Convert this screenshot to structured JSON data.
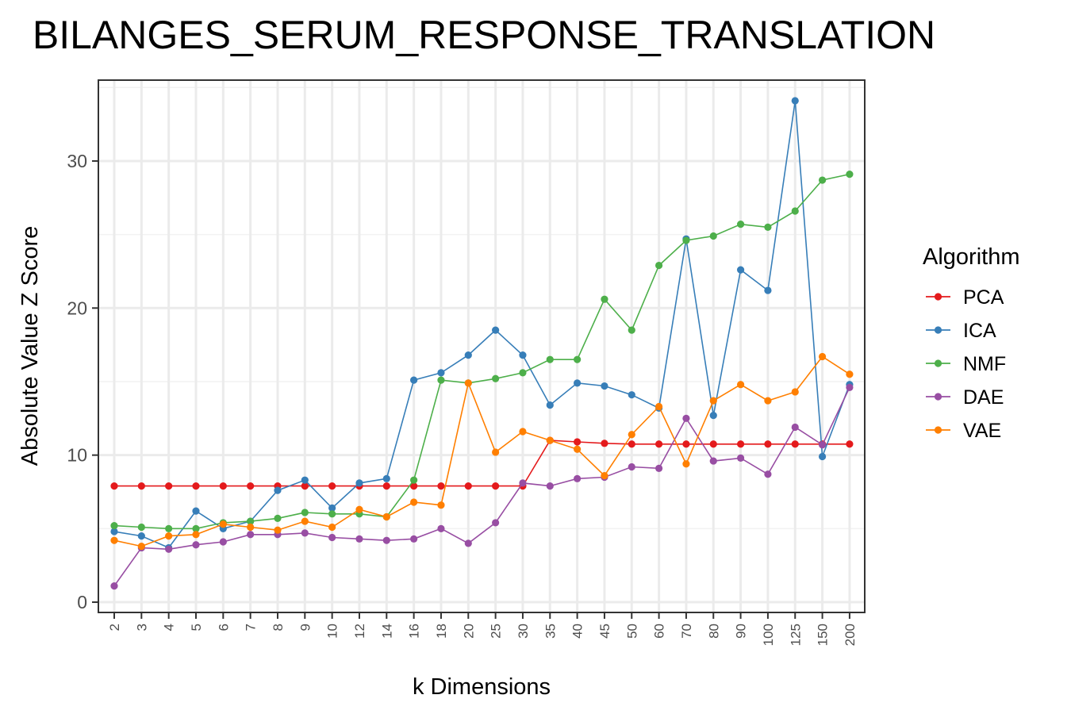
{
  "chart_data": {
    "type": "line",
    "title": "BILANGES_SERUM_RESPONSE_TRANSLATION",
    "xlabel": "k Dimensions",
    "ylabel": "Absolute Value Z Score",
    "categories": [
      "2",
      "3",
      "4",
      "5",
      "6",
      "7",
      "8",
      "9",
      "10",
      "12",
      "14",
      "16",
      "18",
      "20",
      "25",
      "30",
      "35",
      "40",
      "45",
      "50",
      "60",
      "70",
      "80",
      "90",
      "100",
      "125",
      "150",
      "200"
    ],
    "ylim": [
      -0.7,
      35.5
    ],
    "yticks": [
      0,
      10,
      20,
      30
    ],
    "grid": true,
    "legend_title": "Algorithm",
    "legend_position": "right",
    "series": [
      {
        "name": "PCA",
        "color": "#e41a1c",
        "values": [
          7.9,
          7.9,
          7.9,
          7.9,
          7.9,
          7.9,
          7.9,
          7.9,
          7.9,
          7.9,
          7.9,
          7.9,
          7.9,
          7.9,
          7.9,
          7.9,
          11.0,
          10.9,
          10.8,
          10.75,
          10.75,
          10.75,
          10.75,
          10.75,
          10.75,
          10.75,
          10.75,
          10.75
        ]
      },
      {
        "name": "ICA",
        "color": "#377eb8",
        "values": [
          4.8,
          4.5,
          3.7,
          6.2,
          5.0,
          5.5,
          7.6,
          8.3,
          6.4,
          8.1,
          8.4,
          15.1,
          15.6,
          16.8,
          18.5,
          16.8,
          13.4,
          14.9,
          14.7,
          14.1,
          13.2,
          24.7,
          12.7,
          22.6,
          21.2,
          34.1,
          9.9,
          14.8
        ]
      },
      {
        "name": "NMF",
        "color": "#4daf4a",
        "values": [
          5.2,
          5.1,
          5.0,
          5.0,
          5.4,
          5.5,
          5.7,
          6.1,
          6.0,
          6.0,
          5.8,
          8.3,
          15.1,
          14.9,
          15.2,
          15.6,
          16.5,
          16.5,
          20.6,
          18.5,
          22.9,
          24.6,
          24.9,
          25.7,
          25.5,
          26.6,
          28.7,
          29.1
        ]
      },
      {
        "name": "DAE",
        "color": "#984ea3",
        "values": [
          1.1,
          3.7,
          3.6,
          3.9,
          4.1,
          4.6,
          4.6,
          4.7,
          4.4,
          4.3,
          4.2,
          4.3,
          5.0,
          4.0,
          5.4,
          8.1,
          7.9,
          8.4,
          8.5,
          9.2,
          9.1,
          12.5,
          9.6,
          9.8,
          8.7,
          11.9,
          10.7,
          14.6
        ]
      },
      {
        "name": "VAE",
        "color": "#ff7f00",
        "values": [
          4.2,
          3.8,
          4.5,
          4.6,
          5.3,
          5.1,
          4.9,
          5.5,
          5.1,
          6.3,
          5.8,
          6.8,
          6.6,
          14.9,
          10.2,
          11.6,
          11.0,
          10.4,
          8.6,
          11.4,
          13.3,
          9.4,
          13.7,
          14.8,
          13.7,
          14.3,
          16.7,
          15.5
        ]
      }
    ]
  }
}
